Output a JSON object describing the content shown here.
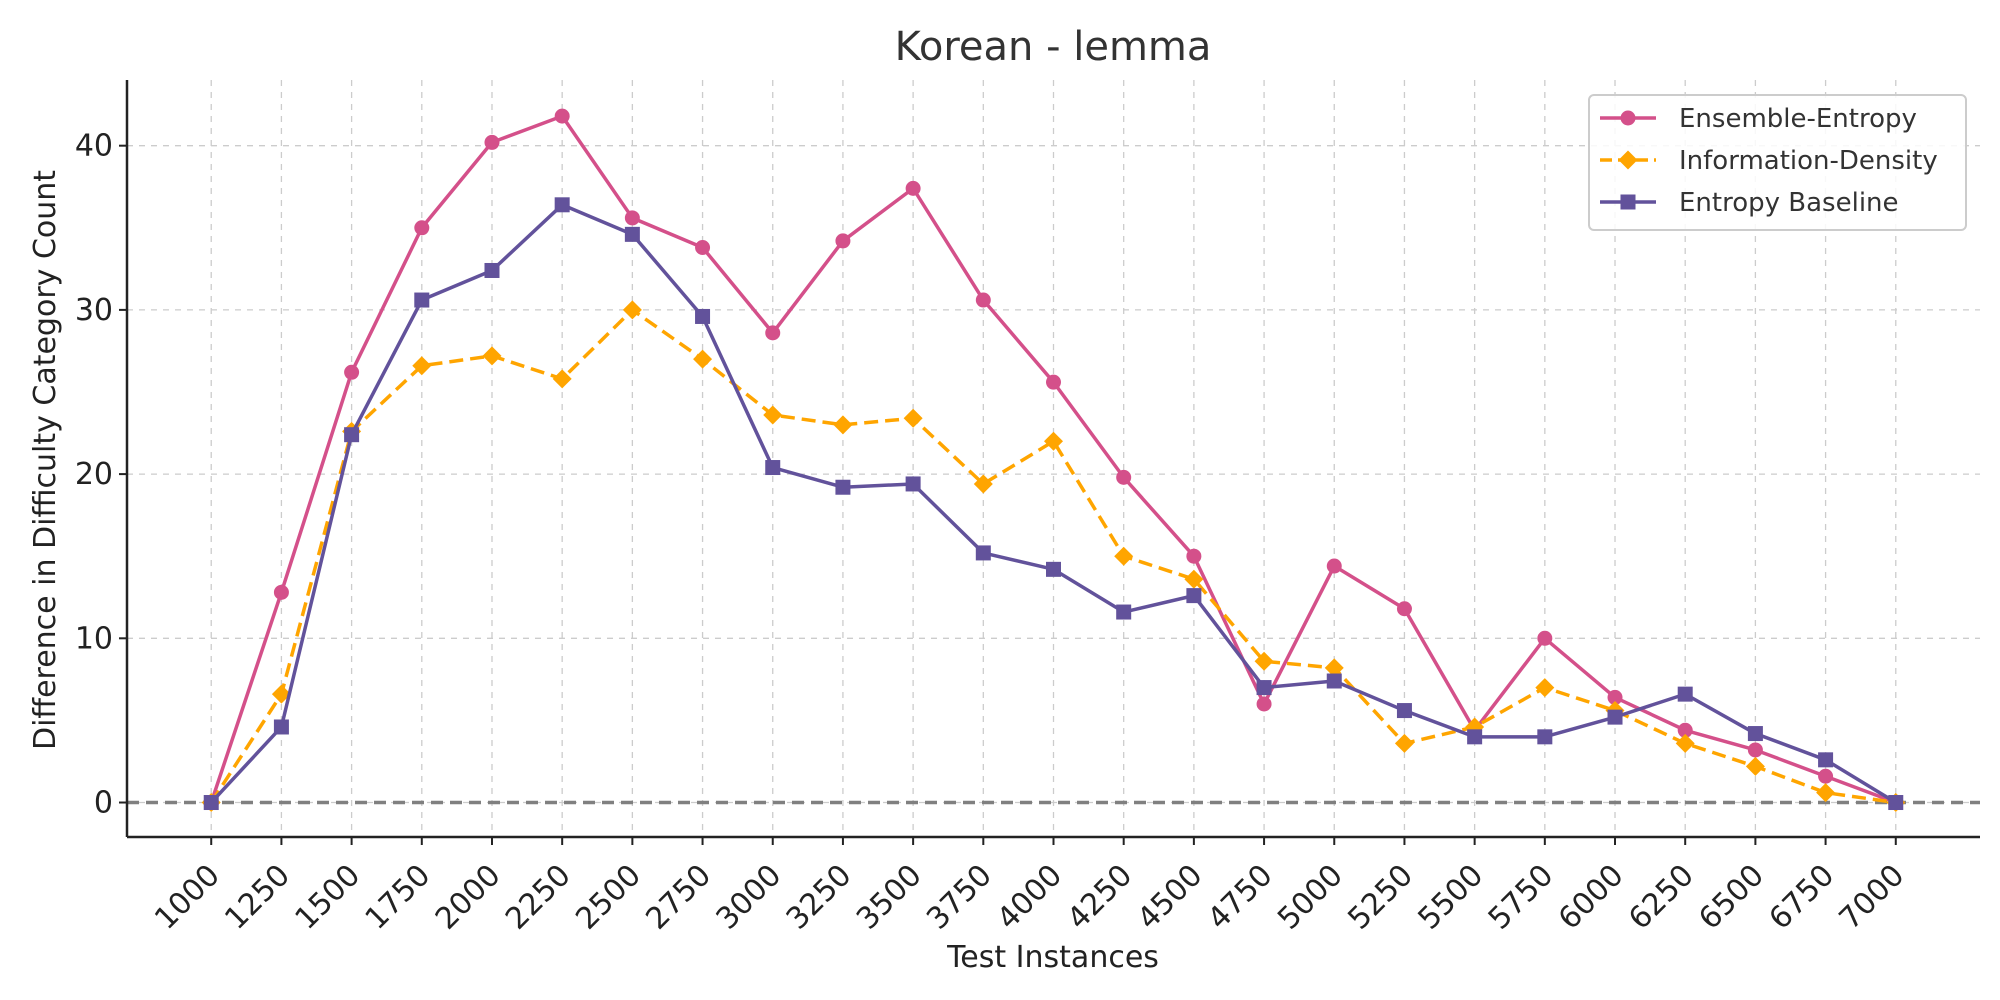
{
  "chart_data": {
    "type": "line",
    "title": "Korean - lemma",
    "xlabel": "Test Instances",
    "ylabel": "Difference in Difficulty Category Count",
    "x": [
      1000,
      1250,
      1500,
      1750,
      2000,
      2250,
      2500,
      2750,
      3000,
      3250,
      3500,
      3750,
      4000,
      4250,
      4500,
      4750,
      5000,
      5250,
      5500,
      5750,
      6000,
      6250,
      6500,
      6750,
      7000
    ],
    "xlim": [
      700,
      7300
    ],
    "ylim": [
      -2.1,
      44
    ],
    "yticks": [
      0,
      10,
      20,
      30,
      40
    ],
    "grid": true,
    "legend_position": "top-right",
    "reference_line": {
      "y": 0,
      "style": "dashed",
      "color": "#808080"
    },
    "series": [
      {
        "name": "Ensemble-Entropy",
        "color": "#d4508a",
        "marker": "circle",
        "linestyle": "solid",
        "values": [
          0,
          12.8,
          26.2,
          35,
          40.2,
          41.8,
          35.6,
          33.8,
          28.6,
          34.2,
          37.4,
          30.6,
          25.6,
          19.8,
          15,
          6,
          14.4,
          11.8,
          4.4,
          10,
          6.4,
          4.4,
          3.2,
          1.6,
          0
        ]
      },
      {
        "name": "Information-Density",
        "color": "#ffa500",
        "marker": "diamond",
        "linestyle": "dashed",
        "values": [
          0,
          6.6,
          22.6,
          26.6,
          27.2,
          25.8,
          30,
          27,
          23.6,
          23,
          23.4,
          19.4,
          22,
          15,
          13.6,
          8.6,
          8.2,
          3.6,
          4.6,
          7,
          5.6,
          3.6,
          2.2,
          0.6,
          0
        ]
      },
      {
        "name": "Entropy Baseline",
        "color": "#62529b",
        "marker": "square",
        "linestyle": "solid",
        "values": [
          0,
          4.6,
          22.4,
          30.6,
          32.4,
          36.4,
          34.6,
          29.6,
          20.4,
          19.2,
          19.4,
          15.2,
          14.2,
          11.6,
          12.6,
          7,
          7.4,
          5.6,
          4,
          4,
          5.2,
          6.6,
          4.2,
          2.6,
          0
        ]
      }
    ]
  }
}
